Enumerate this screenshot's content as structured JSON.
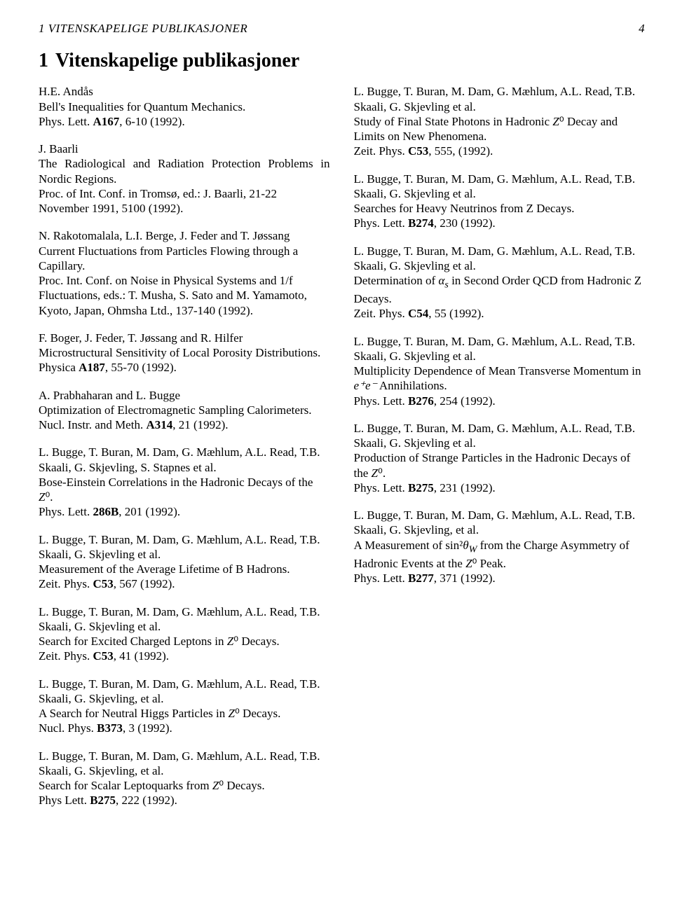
{
  "running_head_left": "1   VITENSKAPELIGE PUBLIKASJONER",
  "running_head_right": "4",
  "section_number": "1",
  "section_title": "Vitenskapelige publikasjoner",
  "entries": [
    {
      "lines": [
        {
          "t": "H.E. Andås"
        },
        {
          "t": "Bell's Inequalities for Quantum Mechanics."
        },
        {
          "t": "Phys. Lett. <b>A167</b>, 6-10 (1992)."
        }
      ]
    },
    {
      "lines": [
        {
          "t": "J. Baarli"
        },
        {
          "t": "The Radiological and Radiation Protection Problems in Nordic Regions.",
          "just": true
        },
        {
          "t": "Proc. of Int. Conf. in Tromsø, ed.: J. Baarli, 21-22 November 1991, 5100 (1992)."
        }
      ]
    },
    {
      "lines": [
        {
          "t": "N. Rakotomalala, L.I. Berge, J. Feder and T. Jøssang"
        },
        {
          "t": "Current Fluctuations from Particles Flowing through a Capillary."
        },
        {
          "t": "Proc. Int. Conf. on Noise in Physical Systems and 1/f Fluctuations, eds.: T. Musha, S. Sato and M. Yamamoto, Kyoto, Japan, Ohmsha Ltd., 137-140 (1992)."
        }
      ]
    },
    {
      "lines": [
        {
          "t": "F. Boger, J. Feder, T. Jøssang and R. Hilfer"
        },
        {
          "t": "Microstructural Sensitivity of Local Porosity Distributions."
        },
        {
          "t": "Physica <b>A187</b>, 55-70 (1992)."
        }
      ]
    },
    {
      "lines": [
        {
          "t": "A. Prabhaharan and L. Bugge"
        },
        {
          "t": "Optimization of Electromagnetic Sampling Calorimeters.",
          "just": true
        },
        {
          "t": "Nucl. Instr. and Meth. <b>A314</b>, 21 (1992)."
        }
      ]
    },
    {
      "lines": [
        {
          "t": "L. Bugge, T. Buran, M. Dam, G. Mæhlum, A.L. Read, T.B. Skaali, G. Skjevling, S. Stapnes et al."
        },
        {
          "t": "Bose-Einstein Correlations in the Hadronic Decays of the <i>Z</i>⁰."
        },
        {
          "t": "Phys. Lett. <b>286B</b>, 201 (1992)."
        }
      ]
    },
    {
      "lines": [
        {
          "t": "L. Bugge, T. Buran, M. Dam, G. Mæhlum, A.L. Read, T.B. Skaali, G. Skjevling et al."
        },
        {
          "t": "Measurement of the Average Lifetime of B Hadrons."
        },
        {
          "t": "Zeit. Phys. <b>C53</b>, 567 (1992)."
        }
      ]
    },
    {
      "lines": [
        {
          "t": "L. Bugge, T. Buran, M. Dam, G. Mæhlum, A.L. Read, T.B. Skaali, G. Skjevling et al."
        },
        {
          "t": "Search for Excited Charged Leptons in <i>Z</i>⁰ Decays."
        },
        {
          "t": "Zeit. Phys. <b>C53</b>, 41 (1992)."
        }
      ]
    },
    {
      "lines": [
        {
          "t": "L. Bugge, T. Buran, M. Dam, G. Mæhlum, A.L. Read, T.B. Skaali, G. Skjevling, et al."
        },
        {
          "t": "A Search for Neutral Higgs Particles in <i>Z</i>⁰ Decays."
        },
        {
          "t": "Nucl. Phys. <b>B373</b>, 3 (1992)."
        }
      ]
    },
    {
      "lines": [
        {
          "t": "L. Bugge, T. Buran, M. Dam, G. Mæhlum, A.L. Read, T.B. Skaali, G. Skjevling, et al."
        },
        {
          "t": "Search for Scalar Leptoquarks from <i>Z</i>⁰ Decays."
        },
        {
          "t": "Phys Lett. <b>B275</b>, 222 (1992)."
        }
      ]
    },
    {
      "lines": [
        {
          "t": "L. Bugge, T. Buran, M. Dam, G. Mæhlum, A.L. Read, T.B. Skaali, G. Skjevling et al."
        },
        {
          "t": "Study of Final State Photons in Hadronic <i>Z</i>⁰ Decay and Limits on New Phenomena."
        },
        {
          "t": "Zeit. Phys. <b>C53</b>, 555, (1992)."
        }
      ]
    },
    {
      "lines": [
        {
          "t": "L. Bugge, T. Buran, M. Dam, G. Mæhlum, A.L. Read, T.B. Skaali, G. Skjevling et al."
        },
        {
          "t": "Searches for Heavy Neutrinos from Z Decays."
        },
        {
          "t": "Phys. Lett. <b>B274</b>, 230 (1992)."
        }
      ]
    },
    {
      "lines": [
        {
          "t": "L. Bugge, T. Buran, M. Dam, G. Mæhlum, A.L. Read, T.B. Skaali, G. Skjevling et al."
        },
        {
          "t": "Determination of <i>α<sub>s</sub></i> in Second Order QCD from Hadronic Z Decays."
        },
        {
          "t": "Zeit. Phys. <b>C54</b>, 55 (1992)."
        }
      ]
    },
    {
      "lines": [
        {
          "t": "L. Bugge, T. Buran, M. Dam, G. Mæhlum, A.L. Read, T.B. Skaali, G. Skjevling et al."
        },
        {
          "t": "Multiplicity Dependence of Mean Transverse Momentum in <i>e⁺e⁻</i> Annihilations."
        },
        {
          "t": "Phys. Lett. <b>B276</b>, 254 (1992)."
        }
      ]
    },
    {
      "lines": [
        {
          "t": "L. Bugge, T. Buran, M. Dam, G. Mæhlum, A.L. Read, T.B. Skaali, G. Skjevling et al."
        },
        {
          "t": "Production of Strange Particles in the Hadronic Decays of the <i>Z</i>⁰."
        },
        {
          "t": "Phys. Lett. <b>B275</b>, 231 (1992)."
        }
      ]
    },
    {
      "lines": [
        {
          "t": "L. Bugge, T. Buran, M. Dam, G. Mæhlum, A.L. Read, T.B. Skaali, G. Skjevling, et al."
        },
        {
          "t": "A Measurement of sin²<i>θ<sub>W</sub></i> from the Charge Asymmetry of Hadronic Events at the <i>Z</i>⁰ Peak."
        },
        {
          "t": "Phys. Lett. <b>B277</b>, 371 (1992)."
        }
      ]
    }
  ]
}
